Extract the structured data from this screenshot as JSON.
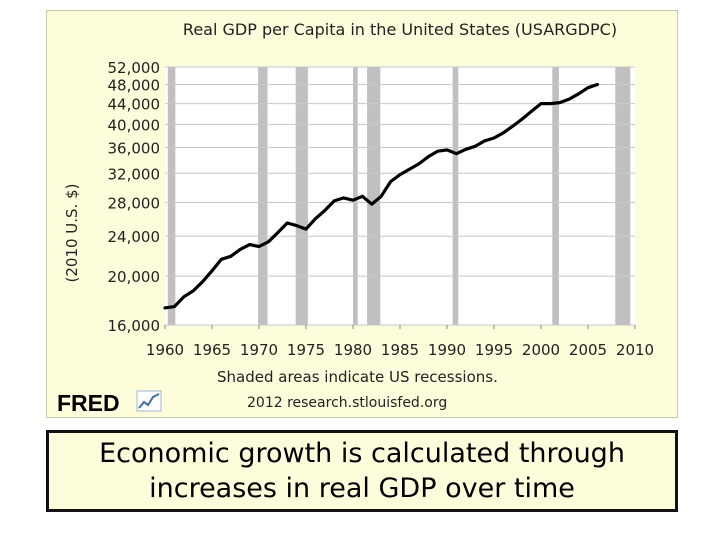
{
  "caption": {
    "line1": "Economic growth is calculated through",
    "line2": "increases in real GDP over time"
  },
  "footer": {
    "note": "Shaded areas indicate US recessions.",
    "logo_text": "FRED",
    "source": "2012 research.stlouisfed.org"
  },
  "colors": {
    "background": "#fdfddc",
    "plot_area": "#ffffff",
    "recession_shade": "#c0c0c0",
    "line": "#000000",
    "grid": "#c8c8c8",
    "logo_text": "#000000"
  },
  "icons": {
    "logo_graph": "chart-line-icon"
  },
  "chart_data": {
    "type": "line",
    "title": "Real GDP per Capita in the United States (USARGDPC)",
    "xlabel": "",
    "ylabel": "(2010 U.S. $)",
    "xlim": [
      1960,
      2010
    ],
    "ylim": [
      16000,
      52000
    ],
    "x_ticks": [
      1960,
      1965,
      1970,
      1975,
      1980,
      1985,
      1990,
      1995,
      2000,
      2005,
      2010
    ],
    "y_ticks": [
      16000,
      20000,
      24000,
      28000,
      32000,
      36000,
      40000,
      44000,
      48000,
      52000
    ],
    "y_tick_labels": [
      "16,000",
      "20,000",
      "24,000",
      "28,000",
      "32,000",
      "36,000",
      "40,000",
      "44,000",
      "48,000",
      "52,000"
    ],
    "y_scale": "log",
    "grid": true,
    "recessions": [
      [
        1960.3,
        1961.1
      ],
      [
        1969.9,
        1970.9
      ],
      [
        1973.9,
        1975.2
      ],
      [
        1980.0,
        1980.5
      ],
      [
        1981.5,
        1982.9
      ],
      [
        1990.6,
        1991.2
      ],
      [
        2001.2,
        2001.9
      ],
      [
        2007.9,
        2009.5
      ]
    ],
    "series": [
      {
        "values": [
          [
            1960,
            17300
          ],
          [
            1961,
            17400
          ],
          [
            1962,
            18200
          ],
          [
            1963,
            18700
          ],
          [
            1964,
            19500
          ],
          [
            1965,
            20500
          ],
          [
            1966,
            21600
          ],
          [
            1967,
            21900
          ],
          [
            1968,
            22600
          ],
          [
            1969,
            23100
          ],
          [
            1970,
            22900
          ],
          [
            1971,
            23400
          ],
          [
            1972,
            24400
          ],
          [
            1973,
            25500
          ],
          [
            1974,
            25200
          ],
          [
            1975,
            24800
          ],
          [
            1976,
            26000
          ],
          [
            1977,
            27000
          ],
          [
            1978,
            28200
          ],
          [
            1979,
            28600
          ],
          [
            1980,
            28300
          ],
          [
            1981,
            28800
          ],
          [
            1982,
            27800
          ],
          [
            1983,
            28800
          ],
          [
            1984,
            30800
          ],
          [
            1985,
            31800
          ],
          [
            1986,
            32600
          ],
          [
            1987,
            33400
          ],
          [
            1988,
            34500
          ],
          [
            1989,
            35400
          ],
          [
            1990,
            35600
          ],
          [
            1991,
            35000
          ],
          [
            1992,
            35700
          ],
          [
            1993,
            36200
          ],
          [
            1994,
            37100
          ],
          [
            1995,
            37600
          ],
          [
            1996,
            38500
          ],
          [
            1997,
            39700
          ],
          [
            1998,
            41000
          ],
          [
            1999,
            42500
          ],
          [
            2000,
            44000
          ],
          [
            2001,
            44000
          ],
          [
            2002,
            44200
          ],
          [
            2003,
            44900
          ],
          [
            2004,
            46000
          ],
          [
            2005,
            47300
          ],
          [
            2006,
            48000
          ]
        ]
      }
    ]
  }
}
